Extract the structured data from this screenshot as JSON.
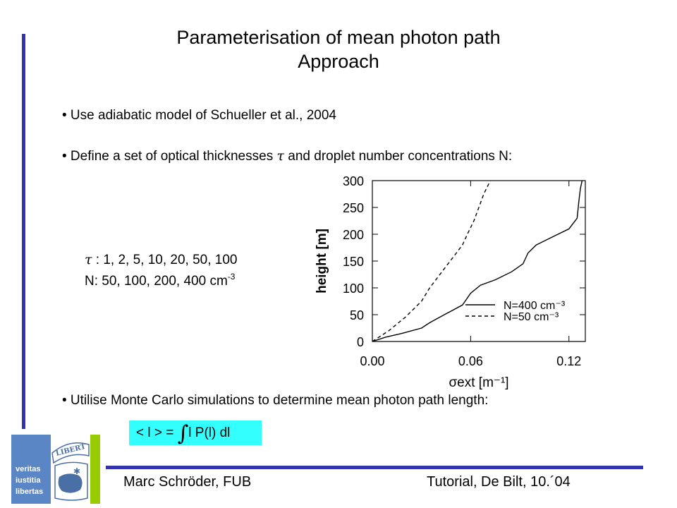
{
  "slide": {
    "title_line1": "Parameterisation of mean photon path",
    "title_line2": "Approach",
    "bullet1": "• Use adiabatic model of Schueller et al., 2004",
    "bullet2_pre": "• Define a set of optical thicknesses ",
    "bullet2_tau": "τ",
    "bullet2_post": " and droplet number concentrations N:",
    "tau_symbol": "τ",
    "tau_values": " : 1, 2, 5, 10, 20, 50, 100",
    "n_values": "N: 50, 100, 200, 400 cm",
    "n_exponent": "-3",
    "bullet3": "• Utilise Monte Carlo simulations to determine mean photon path length:",
    "formula_left": "< l > = ",
    "formula_integral": "∫",
    "formula_right": "l P(l) dl",
    "footer_left": "Marc Schröder, FUB",
    "footer_right": "Tutorial, De Bilt, 10.´04"
  },
  "logo": {
    "line1": "veritas",
    "line2": "iustitia",
    "line3": "libertas",
    "banner": "LIBERT",
    "box_color": "#5b86c5",
    "stripe_color": "#99cc00"
  },
  "colors": {
    "accent_bar": "#3333aa",
    "formula_bg": "#33ffff"
  },
  "chart_data": {
    "type": "line",
    "xlabel": "σext [m⁻¹]",
    "ylabel": "height [m]",
    "xlim": [
      0.0,
      0.13
    ],
    "ylim": [
      0,
      300
    ],
    "xticks": [
      "0.00",
      "0.06",
      "0.12"
    ],
    "yticks": [
      "0",
      "50",
      "100",
      "150",
      "200",
      "250",
      "300"
    ],
    "legend_position": "bottom-right",
    "series": [
      {
        "name": "N=400 cm⁻³",
        "style": "solid",
        "x": [
          0.0,
          0.008,
          0.018,
          0.03,
          0.035,
          0.041,
          0.047,
          0.055,
          0.06,
          0.066,
          0.075,
          0.085,
          0.092,
          0.095,
          0.1,
          0.11,
          0.12,
          0.125,
          0.126,
          0.127,
          0.128
        ],
        "y": [
          0,
          8,
          15,
          25,
          35,
          45,
          55,
          68,
          90,
          105,
          115,
          130,
          145,
          165,
          180,
          195,
          210,
          230,
          260,
          285,
          300
        ]
      },
      {
        "name": "N=50 cm⁻³",
        "style": "dashed",
        "x": [
          0.0,
          0.01,
          0.02,
          0.03,
          0.035,
          0.04,
          0.045,
          0.05,
          0.055,
          0.058,
          0.062,
          0.065,
          0.068,
          0.072
        ],
        "y": [
          0,
          20,
          45,
          75,
          100,
          120,
          140,
          160,
          180,
          200,
          225,
          250,
          275,
          300
        ]
      }
    ]
  }
}
